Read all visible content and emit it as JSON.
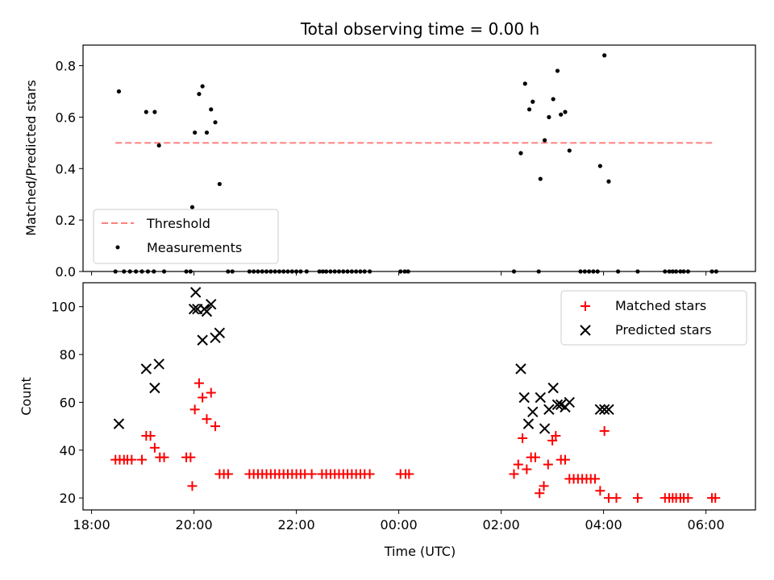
{
  "chart_data": [
    {
      "type": "scatter",
      "title": "Total observing time = 0.00 h",
      "xlabel": "",
      "ylabel": "Matched/Predicted stars",
      "xlim": [
        "17:50",
        "06:58"
      ],
      "ylim": [
        0,
        0.88
      ],
      "x_ticks": [
        "18:00",
        "20:00",
        "22:00",
        "00:00",
        "02:00",
        "04:00",
        "06:00"
      ],
      "y_ticks": [
        0.0,
        0.2,
        0.4,
        0.6,
        0.8
      ],
      "y_tick_labels": [
        "0.0",
        "0.2",
        "0.4",
        "0.6",
        "0.8"
      ],
      "grid": false,
      "legend_position": "lower-left",
      "legend": [
        "Threshold",
        "Measurements"
      ],
      "colors": {
        "threshold": "#ff7f7f",
        "measurements": "#000000"
      },
      "series": [
        {
          "name": "Threshold",
          "style": "dashed-line",
          "x": [
            "18:28",
            "06:11"
          ],
          "y": [
            0.5,
            0.5
          ]
        },
        {
          "name": "Measurements",
          "style": "dot",
          "points": [
            [
              "18:32",
              0.7
            ],
            [
              "19:04",
              0.62
            ],
            [
              "19:14",
              0.62
            ],
            [
              "19:19",
              0.49
            ],
            [
              "19:58",
              0.25
            ],
            [
              "20:01",
              0.54
            ],
            [
              "20:06",
              0.69
            ],
            [
              "20:10",
              0.72
            ],
            [
              "20:15",
              0.54
            ],
            [
              "20:20",
              0.63
            ],
            [
              "20:25",
              0.58
            ],
            [
              "20:30",
              0.34
            ],
            [
              "02:23",
              0.46
            ],
            [
              "02:28",
              0.73
            ],
            [
              "02:33",
              0.63
            ],
            [
              "02:37",
              0.66
            ],
            [
              "02:46",
              0.36
            ],
            [
              "02:51",
              0.51
            ],
            [
              "02:56",
              0.6
            ],
            [
              "03:01",
              0.67
            ],
            [
              "03:06",
              0.78
            ],
            [
              "03:10",
              0.61
            ],
            [
              "03:15",
              0.62
            ],
            [
              "03:20",
              0.47
            ],
            [
              "03:56",
              0.41
            ],
            [
              "04:01",
              0.84
            ],
            [
              "04:06",
              0.35
            ],
            [
              "18:28",
              0
            ],
            [
              "18:38",
              0
            ],
            [
              "18:45",
              0
            ],
            [
              "18:52",
              0
            ],
            [
              "18:59",
              0
            ],
            [
              "19:06",
              0
            ],
            [
              "19:13",
              0
            ],
            [
              "19:25",
              0
            ],
            [
              "19:51",
              0
            ],
            [
              "19:56",
              0
            ],
            [
              "20:40",
              0
            ],
            [
              "20:45",
              0
            ],
            [
              "21:05",
              0
            ],
            [
              "21:10",
              0
            ],
            [
              "21:15",
              0
            ],
            [
              "21:20",
              0
            ],
            [
              "21:25",
              0
            ],
            [
              "21:30",
              0
            ],
            [
              "21:35",
              0
            ],
            [
              "21:40",
              0
            ],
            [
              "21:45",
              0
            ],
            [
              "21:50",
              0
            ],
            [
              "21:55",
              0
            ],
            [
              "22:00",
              0
            ],
            [
              "22:05",
              0
            ],
            [
              "22:12",
              0
            ],
            [
              "22:27",
              0
            ],
            [
              "22:31",
              0
            ],
            [
              "22:35",
              0
            ],
            [
              "22:40",
              0
            ],
            [
              "22:45",
              0
            ],
            [
              "22:50",
              0
            ],
            [
              "22:55",
              0
            ],
            [
              "23:00",
              0
            ],
            [
              "23:05",
              0
            ],
            [
              "23:10",
              0
            ],
            [
              "23:15",
              0
            ],
            [
              "23:20",
              0
            ],
            [
              "23:26",
              0
            ],
            [
              "00:02",
              0
            ],
            [
              "00:07",
              0
            ],
            [
              "00:11",
              0
            ],
            [
              "02:15",
              0
            ],
            [
              "02:44",
              0
            ],
            [
              "03:33",
              0
            ],
            [
              "03:38",
              0
            ],
            [
              "03:43",
              0
            ],
            [
              "03:48",
              0
            ],
            [
              "03:53",
              0
            ],
            [
              "04:17",
              0
            ],
            [
              "04:40",
              0
            ],
            [
              "05:12",
              0
            ],
            [
              "05:17",
              0
            ],
            [
              "05:21",
              0
            ],
            [
              "05:25",
              0
            ],
            [
              "05:30",
              0
            ],
            [
              "05:34",
              0
            ],
            [
              "05:39",
              0
            ],
            [
              "06:07",
              0
            ],
            [
              "06:12",
              0
            ]
          ]
        }
      ]
    },
    {
      "type": "scatter",
      "title": "",
      "xlabel": "Time (UTC)",
      "ylabel": "Count",
      "xlim": [
        "17:50",
        "06:58"
      ],
      "ylim": [
        15,
        110
      ],
      "x_ticks": [
        "18:00",
        "20:00",
        "22:00",
        "00:00",
        "02:00",
        "04:00",
        "06:00"
      ],
      "y_ticks": [
        20,
        40,
        60,
        80,
        100
      ],
      "y_tick_labels": [
        "20",
        "40",
        "60",
        "80",
        "100"
      ],
      "grid": false,
      "legend_position": "top-right",
      "legend": [
        "Matched stars",
        "Predicted stars"
      ],
      "colors": {
        "matched": "#ff0000",
        "predicted": "#000000"
      },
      "series": [
        {
          "name": "Matched stars",
          "marker": "+",
          "points": [
            [
              "18:28",
              36
            ],
            [
              "18:33",
              36
            ],
            [
              "18:38",
              36
            ],
            [
              "18:42",
              36
            ],
            [
              "18:47",
              36
            ],
            [
              "18:59",
              36
            ],
            [
              "19:04",
              46
            ],
            [
              "19:09",
              46
            ],
            [
              "19:14",
              41
            ],
            [
              "19:20",
              37
            ],
            [
              "19:25",
              37
            ],
            [
              "19:51",
              37
            ],
            [
              "19:56",
              37
            ],
            [
              "19:58",
              25
            ],
            [
              "20:01",
              57
            ],
            [
              "20:06",
              68
            ],
            [
              "20:10",
              62
            ],
            [
              "20:15",
              53
            ],
            [
              "20:20",
              64
            ],
            [
              "20:25",
              50
            ],
            [
              "20:30",
              30
            ],
            [
              "20:35",
              30
            ],
            [
              "20:40",
              30
            ],
            [
              "21:05",
              30
            ],
            [
              "21:10",
              30
            ],
            [
              "21:15",
              30
            ],
            [
              "21:20",
              30
            ],
            [
              "21:25",
              30
            ],
            [
              "21:30",
              30
            ],
            [
              "21:35",
              30
            ],
            [
              "21:40",
              30
            ],
            [
              "21:45",
              30
            ],
            [
              "21:50",
              30
            ],
            [
              "21:55",
              30
            ],
            [
              "22:00",
              30
            ],
            [
              "22:05",
              30
            ],
            [
              "22:10",
              30
            ],
            [
              "22:18",
              30
            ],
            [
              "22:30",
              30
            ],
            [
              "22:35",
              30
            ],
            [
              "22:40",
              30
            ],
            [
              "22:45",
              30
            ],
            [
              "22:50",
              30
            ],
            [
              "22:55",
              30
            ],
            [
              "23:00",
              30
            ],
            [
              "23:05",
              30
            ],
            [
              "23:10",
              30
            ],
            [
              "23:15",
              30
            ],
            [
              "23:20",
              30
            ],
            [
              "23:26",
              30
            ],
            [
              "00:02",
              30
            ],
            [
              "00:08",
              30
            ],
            [
              "00:12",
              30
            ],
            [
              "02:15",
              30
            ],
            [
              "02:20",
              34
            ],
            [
              "02:25",
              45
            ],
            [
              "02:30",
              32
            ],
            [
              "02:35",
              37
            ],
            [
              "02:40",
              37
            ],
            [
              "02:45",
              22
            ],
            [
              "02:50",
              25
            ],
            [
              "02:55",
              34
            ],
            [
              "03:00",
              44
            ],
            [
              "03:04",
              46
            ],
            [
              "03:10",
              36
            ],
            [
              "03:15",
              36
            ],
            [
              "03:20",
              28
            ],
            [
              "03:25",
              28
            ],
            [
              "03:30",
              28
            ],
            [
              "03:35",
              28
            ],
            [
              "03:40",
              28
            ],
            [
              "03:45",
              28
            ],
            [
              "03:50",
              28
            ],
            [
              "03:56",
              23
            ],
            [
              "04:01",
              48
            ],
            [
              "04:06",
              20
            ],
            [
              "04:15",
              20
            ],
            [
              "04:40",
              20
            ],
            [
              "05:12",
              20
            ],
            [
              "05:17",
              20
            ],
            [
              "05:21",
              20
            ],
            [
              "05:25",
              20
            ],
            [
              "05:30",
              20
            ],
            [
              "05:34",
              20
            ],
            [
              "05:39",
              20
            ],
            [
              "06:07",
              20
            ],
            [
              "06:11",
              20
            ]
          ]
        },
        {
          "name": "Predicted stars",
          "marker": "x",
          "points": [
            [
              "18:32",
              51
            ],
            [
              "19:04",
              74
            ],
            [
              "19:14",
              66
            ],
            [
              "19:19",
              76
            ],
            [
              "20:00",
              99
            ],
            [
              "20:02",
              106
            ],
            [
              "20:04",
              99
            ],
            [
              "20:10",
              86
            ],
            [
              "20:12",
              99
            ],
            [
              "20:15",
              98
            ],
            [
              "20:20",
              101
            ],
            [
              "20:25",
              87
            ],
            [
              "20:30",
              89
            ],
            [
              "02:23",
              74
            ],
            [
              "02:27",
              62
            ],
            [
              "02:32",
              51
            ],
            [
              "02:37",
              56
            ],
            [
              "02:46",
              62
            ],
            [
              "02:51",
              49
            ],
            [
              "02:56",
              57
            ],
            [
              "03:01",
              66
            ],
            [
              "03:06",
              59
            ],
            [
              "03:10",
              59
            ],
            [
              "03:15",
              58
            ],
            [
              "03:20",
              60
            ],
            [
              "03:56",
              57
            ],
            [
              "04:01",
              57
            ],
            [
              "04:06",
              57
            ]
          ]
        }
      ]
    }
  ]
}
